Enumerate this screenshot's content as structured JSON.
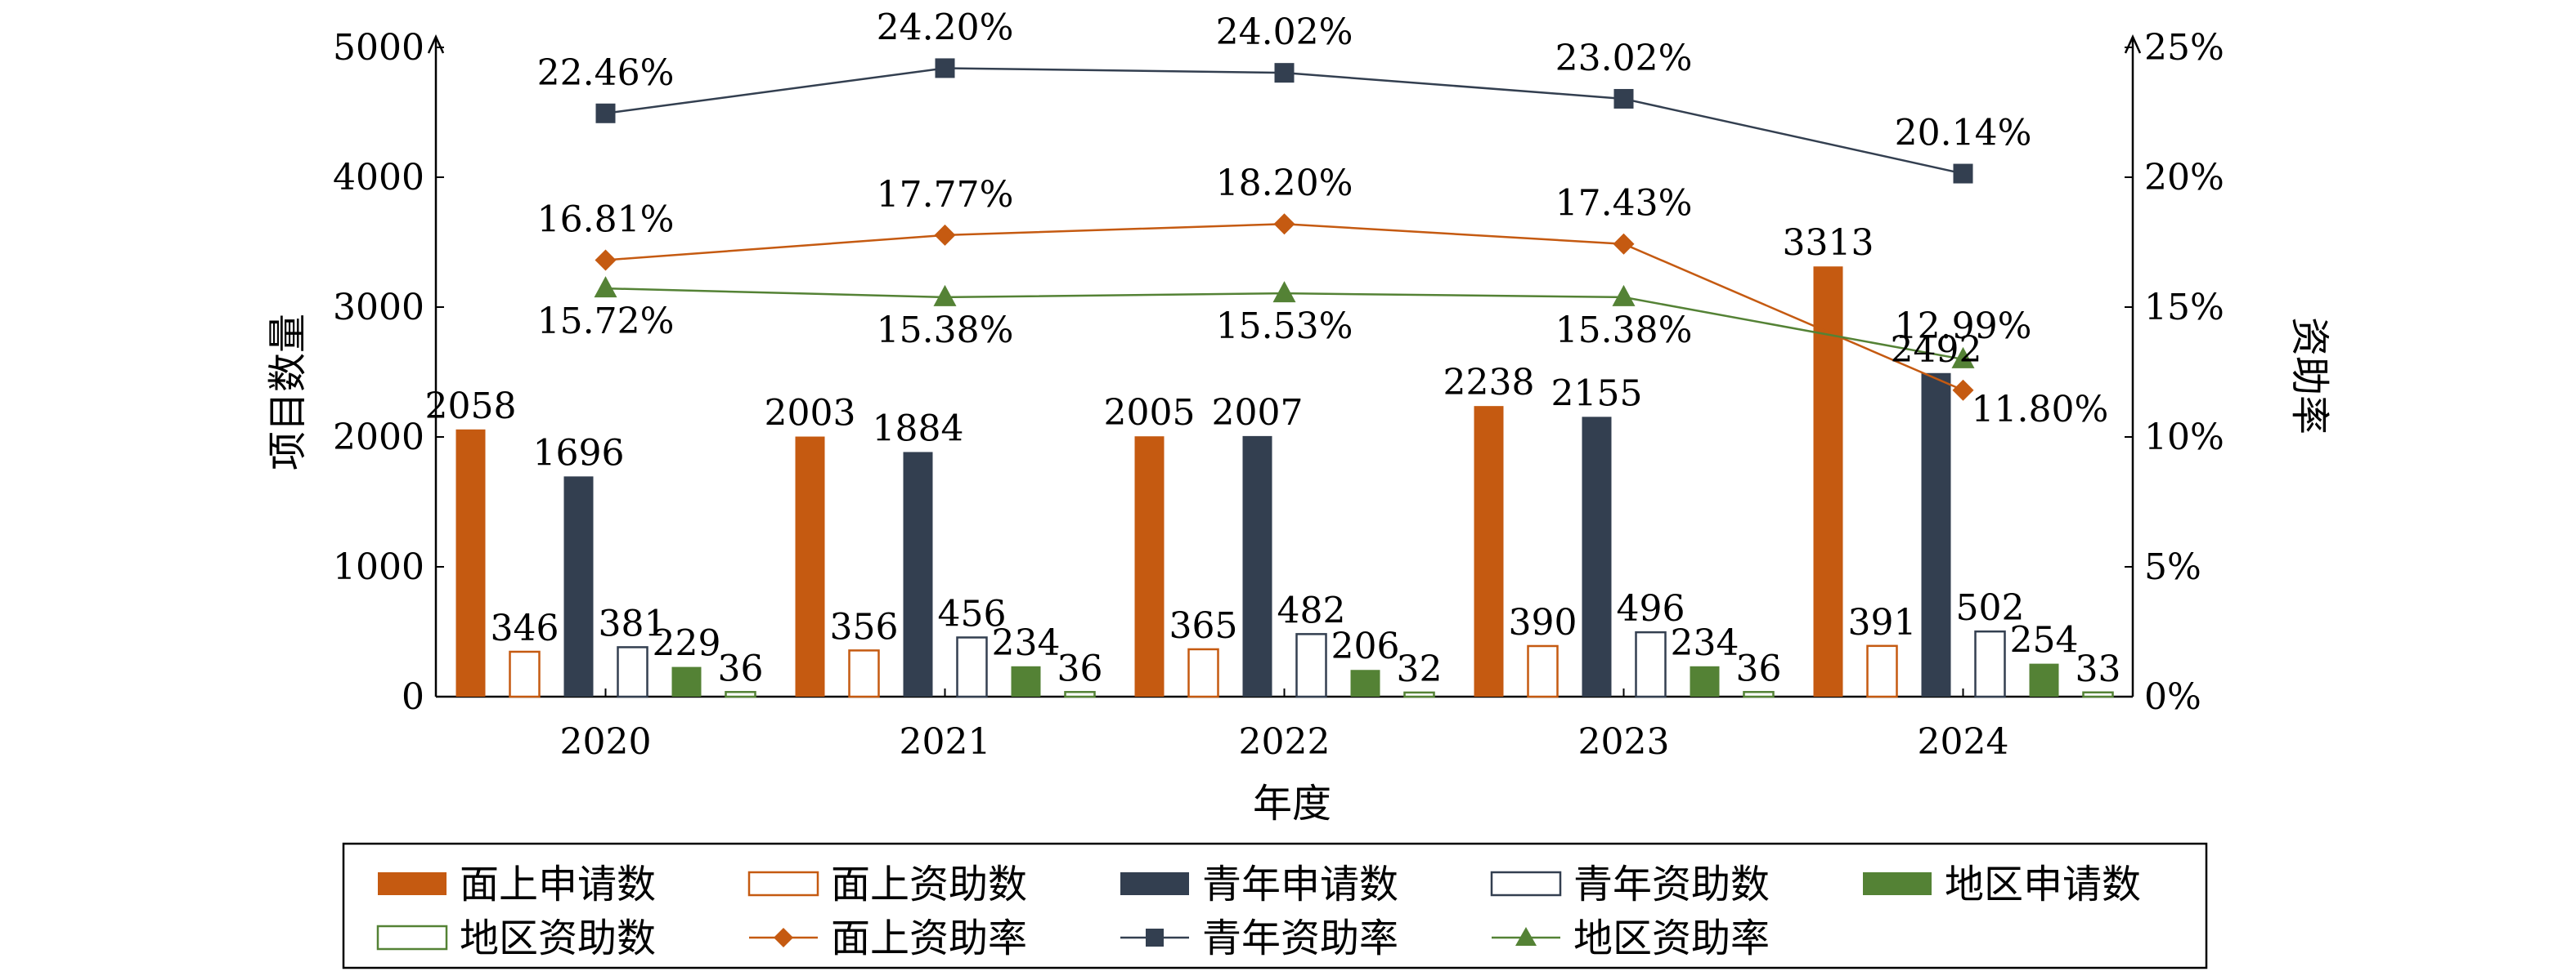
{
  "chart_data": {
    "type": "bar",
    "categories": [
      "2020",
      "2021",
      "2022",
      "2023",
      "2024"
    ],
    "xlabel": "年度",
    "ylabel_left": "项目数量",
    "ylabel_right": "资助率",
    "ylim_left": [
      0,
      5000
    ],
    "yticks_left": [
      "0",
      "1000",
      "2000",
      "3000",
      "4000",
      "5000"
    ],
    "ylim_right": [
      0,
      25
    ],
    "yticks_right": [
      "0%",
      "5%",
      "10%",
      "15%",
      "20%",
      "25%"
    ],
    "grid": false,
    "legend_position": "bottom",
    "bar_series": [
      {
        "name": "面上申请数",
        "values": [
          2058,
          2003,
          2005,
          2238,
          3313
        ],
        "labels": [
          "2058",
          "2003",
          "2005",
          "2238",
          "3313"
        ],
        "color": "#c55a11",
        "filled": true
      },
      {
        "name": "面上资助数",
        "values": [
          346,
          356,
          365,
          390,
          391
        ],
        "labels": [
          "346",
          "356",
          "365",
          "390",
          "391"
        ],
        "color": "#c55a11",
        "filled": false
      },
      {
        "name": "青年申请数",
        "values": [
          1696,
          1884,
          2007,
          2155,
          2492
        ],
        "labels": [
          "1696",
          "1884",
          "2007",
          "2155",
          "2492"
        ],
        "color": "#333f50",
        "filled": true
      },
      {
        "name": "青年资助数",
        "values": [
          381,
          456,
          482,
          496,
          502
        ],
        "labels": [
          "381",
          "456",
          "482",
          "496",
          "502"
        ],
        "color": "#333f50",
        "filled": false
      },
      {
        "name": "地区申请数",
        "values": [
          229,
          234,
          206,
          234,
          254
        ],
        "labels": [
          "229",
          "234",
          "206",
          "234",
          "254"
        ],
        "color": "#548235",
        "filled": true
      },
      {
        "name": "地区资助数",
        "values": [
          36,
          36,
          32,
          36,
          33
        ],
        "labels": [
          "36",
          "36",
          "32",
          "36",
          "33"
        ],
        "color": "#548235",
        "filled": false
      }
    ],
    "line_series": [
      {
        "name": "面上资助率",
        "values": [
          16.81,
          17.77,
          18.2,
          17.43,
          11.8
        ],
        "labels": [
          "16.81%",
          "17.77%",
          "18.20%",
          "17.43%",
          "11.80%"
        ],
        "color": "#c55a11",
        "marker": "diamond"
      },
      {
        "name": "青年资助率",
        "values": [
          22.46,
          24.2,
          24.02,
          23.02,
          20.14
        ],
        "labels": [
          "22.46%",
          "24.20%",
          "24.02%",
          "23.02%",
          "20.14%"
        ],
        "color": "#333f50",
        "marker": "square"
      },
      {
        "name": "地区资助率",
        "values": [
          15.72,
          15.38,
          15.53,
          15.38,
          12.99
        ],
        "labels": [
          "15.72%",
          "15.38%",
          "15.53%",
          "15.38%",
          "12.99%"
        ],
        "color": "#548235",
        "marker": "triangle"
      }
    ]
  }
}
